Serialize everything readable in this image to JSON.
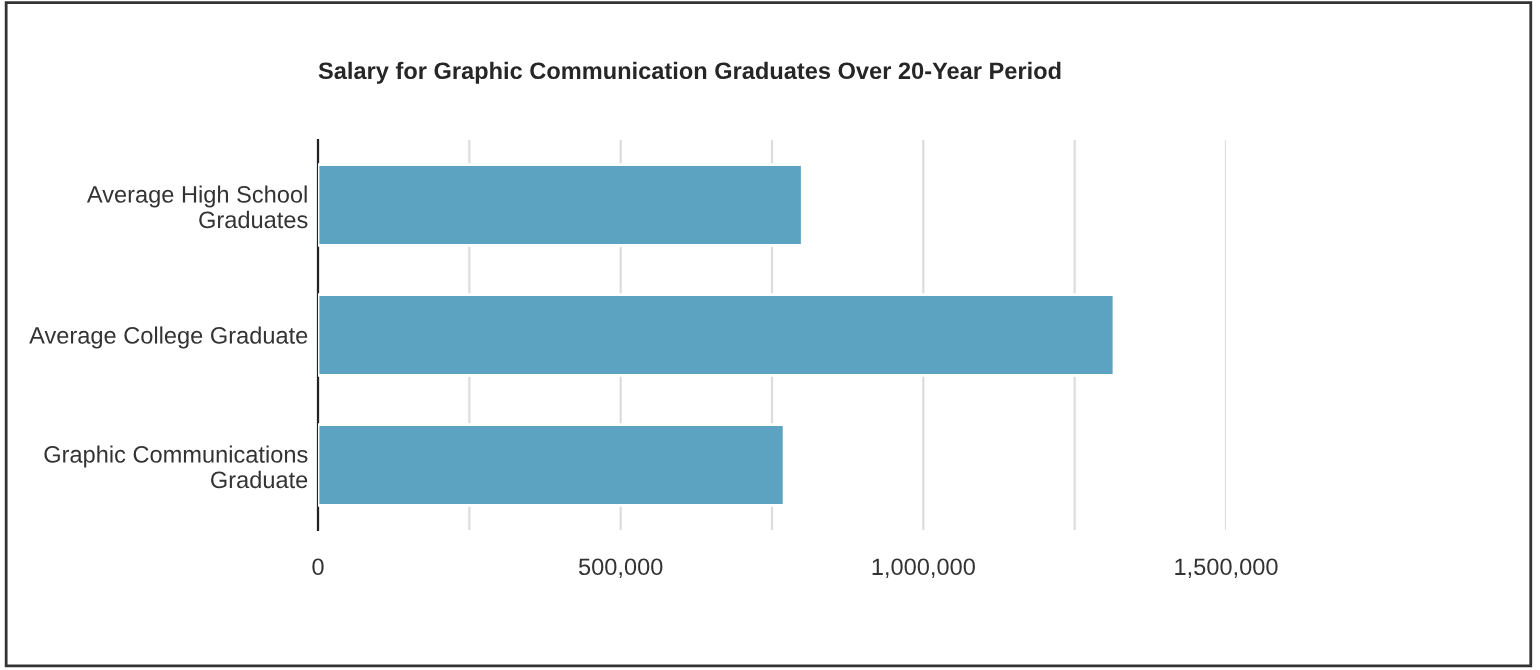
{
  "chart_data": {
    "type": "bar",
    "orientation": "horizontal",
    "title": "Salary for Graphic Communication Graduates Over 20-Year Period",
    "categories": [
      "Average High School\nGraduates",
      "Average College Graduate",
      "Graphic Communications\nGraduate"
    ],
    "values": [
      800000,
      1315000,
      770000
    ],
    "color": "#5ba3c0",
    "xlim": [
      0,
      1500000
    ],
    "xticks": [
      0,
      {
        "value": 250000,
        "label": null
      },
      {
        "value": 500000,
        "label": "500,000"
      },
      {
        "value": 750000,
        "label": null
      },
      {
        "value": 1000000,
        "label": "1,000,000"
      },
      {
        "value": 1250000,
        "label": null
      },
      {
        "value": 1500000,
        "label": "1,500,000"
      }
    ],
    "grid": "x"
  }
}
